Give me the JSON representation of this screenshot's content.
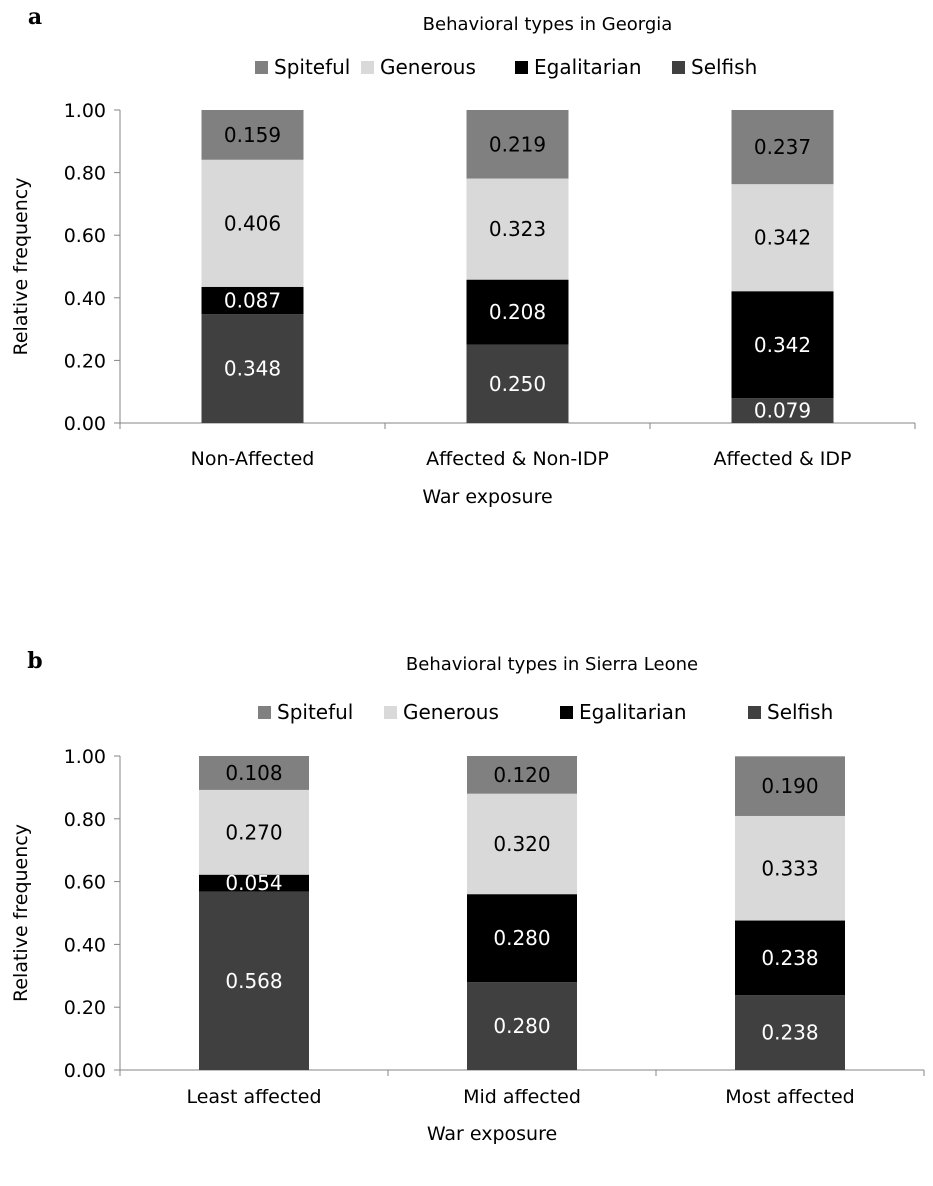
{
  "chart_data": [
    {
      "type": "bar",
      "stacked": true,
      "panel_label": "a",
      "title": "Behavioral types in Georgia",
      "xlabel": "War exposure",
      "ylabel": "Relative frequency",
      "ylim": [
        0,
        1
      ],
      "yticks": [
        "0.00",
        "0.20",
        "0.40",
        "0.60",
        "0.80",
        "1.00"
      ],
      "legend_position": "top",
      "categories": [
        "Non-Affected",
        "Affected & Non-IDP",
        "Affected & IDP"
      ],
      "series": [
        {
          "name": "Selfish",
          "color": "#404040",
          "label_color": "#ffffff",
          "values": [
            0.348,
            0.25,
            0.079
          ],
          "labels": [
            "0.348",
            "0.250",
            "0.079"
          ]
        },
        {
          "name": "Egalitarian",
          "color": "#000000",
          "label_color": "#ffffff",
          "values": [
            0.087,
            0.208,
            0.342
          ],
          "labels": [
            "0.087",
            "0.208",
            "0.342"
          ]
        },
        {
          "name": "Generous",
          "color": "#d9d9d9",
          "label_color": "#000000",
          "values": [
            0.406,
            0.323,
            0.342
          ],
          "labels": [
            "0.406",
            "0.323",
            "0.342"
          ]
        },
        {
          "name": "Spiteful",
          "color": "#808080",
          "label_color": "#000000",
          "values": [
            0.159,
            0.219,
            0.237
          ],
          "labels": [
            "0.159",
            "0.219",
            "0.237"
          ]
        }
      ],
      "legend_order": [
        "Spiteful",
        "Generous",
        "Egalitarian",
        "Selfish"
      ]
    },
    {
      "type": "bar",
      "stacked": true,
      "panel_label": "b",
      "title": "Behavioral types in Sierra Leone",
      "xlabel": "War exposure",
      "ylabel": "Relative frequency",
      "ylim": [
        0,
        1
      ],
      "yticks": [
        "0.00",
        "0.20",
        "0.40",
        "0.60",
        "0.80",
        "1.00"
      ],
      "legend_position": "top",
      "categories": [
        "Least affected",
        "Mid affected",
        "Most affected"
      ],
      "series": [
        {
          "name": "Selfish",
          "color": "#404040",
          "label_color": "#ffffff",
          "values": [
            0.568,
            0.28,
            0.238
          ],
          "labels": [
            "0.568",
            "0.280",
            "0.238"
          ]
        },
        {
          "name": "Egalitarian",
          "color": "#000000",
          "label_color": "#ffffff",
          "values": [
            0.054,
            0.28,
            0.238
          ],
          "labels": [
            "0.054",
            "0.280",
            "0.238"
          ]
        },
        {
          "name": "Generous",
          "color": "#d9d9d9",
          "label_color": "#000000",
          "values": [
            0.27,
            0.32,
            0.333
          ],
          "labels": [
            "0.270",
            "0.320",
            "0.333"
          ]
        },
        {
          "name": "Spiteful",
          "color": "#808080",
          "label_color": "#000000",
          "values": [
            0.108,
            0.12,
            0.19
          ],
          "labels": [
            "0.108",
            "0.120",
            "0.190"
          ]
        }
      ],
      "legend_order": [
        "Spiteful",
        "Generous",
        "Egalitarian",
        "Selfish"
      ]
    }
  ]
}
